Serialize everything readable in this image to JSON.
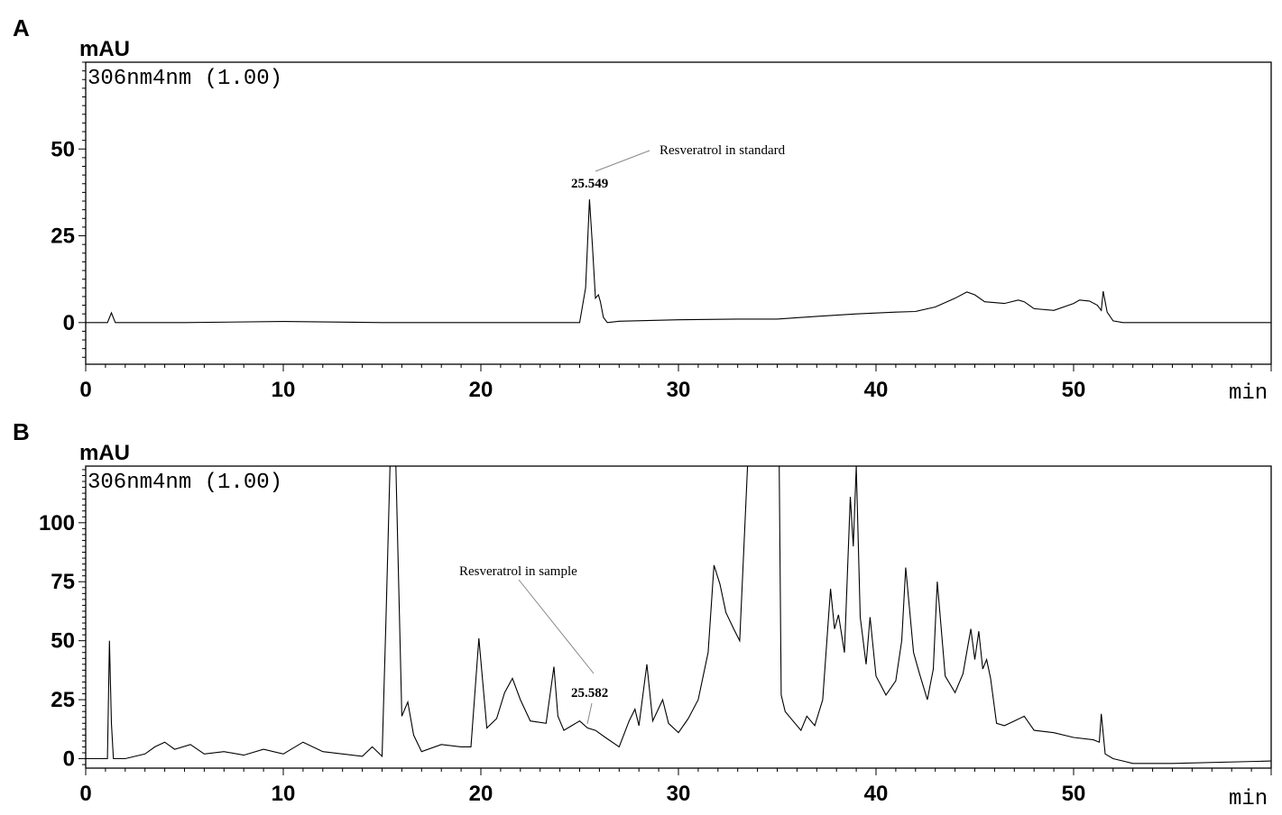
{
  "chart_data": [
    {
      "type": "line",
      "panel": "A",
      "ylabel": "mAU",
      "xlabel": "min",
      "channel": "306nm4nm (1.00)",
      "xlim": [
        0,
        60
      ],
      "ylim": [
        -12,
        75
      ],
      "yticks": [
        0,
        25,
        50
      ],
      "xticks": [
        0,
        10,
        20,
        30,
        40,
        50
      ],
      "annotation": {
        "text": "Resveratrol in standard",
        "peak_label": "25.549",
        "peak_x": 25.549
      },
      "series": [
        {
          "x": [
            0,
            1.1,
            1.3,
            1.5,
            5,
            10,
            15,
            20,
            24,
            25.0,
            25.3,
            25.5,
            25.65,
            25.8,
            25.95,
            26.05,
            26.2,
            26.4,
            27,
            30,
            33,
            35,
            37,
            39,
            41,
            42,
            43,
            44,
            44.6,
            45,
            45.5,
            46.5,
            47.2,
            47.5,
            48,
            49,
            50,
            50.3,
            50.8,
            51.2,
            51.4,
            51.5,
            51.7,
            52,
            52.5,
            55,
            60
          ],
          "y": [
            0,
            0,
            2.8,
            0,
            0,
            0.3,
            0,
            0,
            0,
            0,
            10,
            35.5,
            22,
            7,
            8,
            6,
            1.5,
            0,
            0.4,
            0.8,
            1,
            1,
            1.8,
            2.5,
            3,
            3.2,
            4.5,
            7,
            8.8,
            8,
            6,
            5.5,
            6.5,
            6,
            4,
            3.5,
            5.5,
            6.5,
            6.2,
            5,
            3.5,
            9,
            3,
            0.5,
            0,
            0,
            0
          ]
        }
      ]
    },
    {
      "type": "line",
      "panel": "B",
      "ylabel": "mAU",
      "xlabel": "min",
      "channel": "306nm4nm (1.00)",
      "xlim": [
        0,
        60
      ],
      "ylim": [
        -4,
        124
      ],
      "yticks": [
        0,
        25,
        50,
        75,
        100
      ],
      "xticks": [
        0,
        10,
        20,
        30,
        40,
        50
      ],
      "annotation": {
        "text": "Resveratrol in sample",
        "peak_label": "25.582",
        "peak_x": 25.582
      },
      "series": [
        {
          "x": [
            0,
            1.1,
            1.2,
            1.3,
            1.4,
            2,
            3,
            3.5,
            4,
            4.5,
            5.3,
            6,
            7,
            8,
            9,
            10,
            11,
            12,
            14,
            14.5,
            15,
            15.2,
            15.4,
            15.7,
            16,
            16.3,
            16.6,
            17,
            18,
            19,
            19.5,
            19.9,
            20.3,
            20.8,
            21.2,
            21.6,
            22,
            22.5,
            23.3,
            23.7,
            23.9,
            24.2,
            25,
            25.4,
            25.8,
            26.3,
            27,
            27.5,
            27.8,
            28.0,
            28.4,
            28.7,
            29.2,
            29.5,
            30,
            30.5,
            31,
            31.5,
            31.8,
            32.1,
            32.4,
            32.8,
            33.1,
            33.5,
            33.8,
            34,
            34.5,
            35.1,
            35.2,
            35.4,
            35.8,
            36.2,
            36.5,
            36.9,
            37.3,
            37.7,
            37.9,
            38.1,
            38.4,
            38.7,
            38.85,
            39.0,
            39.2,
            39.5,
            39.7,
            40,
            40.5,
            41,
            41.3,
            41.5,
            41.9,
            42.2,
            42.6,
            42.9,
            43.1,
            43.5,
            44,
            44.4,
            44.8,
            45.0,
            45.2,
            45.4,
            45.6,
            45.8,
            46.1,
            46.5,
            47,
            47.5,
            48,
            49,
            50,
            51,
            51.3,
            51.4,
            51.6,
            52,
            52.5,
            53,
            55,
            60
          ],
          "y": [
            0,
            0,
            50,
            15,
            0,
            0,
            2,
            5,
            7,
            4,
            6,
            2,
            3,
            1.5,
            4,
            2,
            7,
            3,
            1,
            5,
            1,
            60,
            124,
            124,
            18,
            24,
            10,
            3,
            6,
            5,
            5,
            51,
            13,
            17,
            28,
            34,
            25,
            16,
            15,
            39,
            18,
            12,
            16,
            13,
            12,
            9,
            5,
            16,
            21,
            14,
            40,
            16,
            25,
            15,
            11,
            17,
            25,
            45,
            82,
            74,
            62,
            55,
            50,
            124,
            124,
            124,
            124,
            124,
            27,
            20,
            16,
            12,
            18,
            14,
            25,
            72,
            55,
            61,
            45,
            111,
            90,
            124,
            60,
            40,
            60,
            35,
            27,
            33,
            50,
            81,
            45,
            36,
            25,
            38,
            75,
            35,
            28,
            36,
            55,
            42,
            54,
            38,
            42,
            34,
            15,
            14,
            16,
            18,
            12,
            11,
            9,
            8,
            7,
            19,
            2,
            0,
            -1,
            -2,
            -2,
            -1
          ]
        }
      ]
    }
  ]
}
